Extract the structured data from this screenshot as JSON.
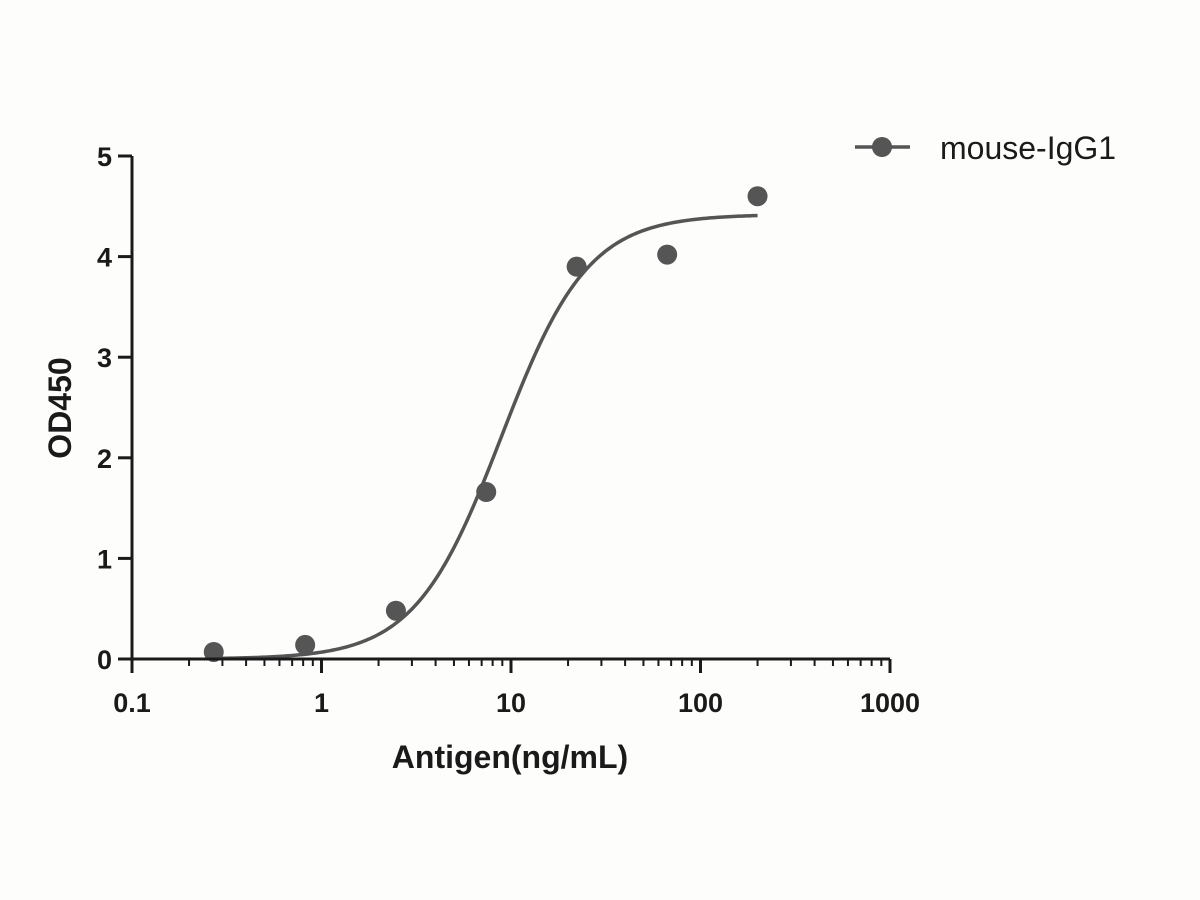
{
  "chart_data": {
    "type": "scatter",
    "xlabel": "Antigen(ng/mL)",
    "ylabel": "OD450",
    "x_scale": "log",
    "xlim": [
      0.1,
      1000
    ],
    "ylim": [
      0,
      5
    ],
    "x_ticks": [
      0.1,
      1,
      10,
      100,
      1000
    ],
    "x_tick_labels": [
      "0.1",
      "1",
      "10",
      "100",
      "1000"
    ],
    "y_ticks": [
      0,
      1,
      2,
      3,
      4,
      5
    ],
    "y_tick_labels": [
      "0",
      "1",
      "2",
      "3",
      "4",
      "5"
    ],
    "grid": false,
    "legend_position": "top-right",
    "color": "#555555",
    "series": [
      {
        "name": "mouse-IgG1",
        "x": [
          0.27,
          0.82,
          2.47,
          7.4,
          22.2,
          66.7,
          200
        ],
        "y": [
          0.07,
          0.14,
          0.48,
          1.66,
          3.9,
          4.02,
          4.6
        ],
        "fit": "sigmoidal",
        "fit_params": {
          "bottom": 0.0,
          "top": 4.42,
          "ec50": 8.9,
          "hill": 1.9
        }
      }
    ]
  }
}
